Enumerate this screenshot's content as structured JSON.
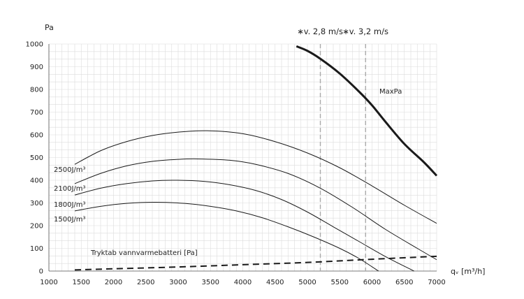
{
  "chart_data": {
    "type": "line",
    "xlabel": "qᵥ [m³/h]",
    "ylabel": "Pa",
    "xlim": [
      1000,
      7000
    ],
    "ylim": [
      0,
      1000
    ],
    "x_ticks": [
      1000,
      1500,
      2000,
      2500,
      3000,
      3500,
      4000,
      4500,
      5000,
      5500,
      6000,
      6500,
      7000
    ],
    "y_ticks": [
      0,
      100,
      200,
      300,
      400,
      500,
      600,
      700,
      800,
      900,
      1000
    ],
    "grid": true,
    "series": [
      {
        "name": "MaxPa",
        "style": "thick",
        "points": [
          [
            4830,
            990
          ],
          [
            5000,
            970
          ],
          [
            5200,
            935
          ],
          [
            5500,
            870
          ],
          [
            5800,
            790
          ],
          [
            6000,
            730
          ],
          [
            6200,
            660
          ],
          [
            6500,
            560
          ],
          [
            6800,
            480
          ],
          [
            7000,
            420
          ]
        ]
      },
      {
        "name": "2500J/m³",
        "style": "thin",
        "points": [
          [
            1400,
            470
          ],
          [
            1800,
            530
          ],
          [
            2200,
            570
          ],
          [
            2600,
            597
          ],
          [
            3000,
            612
          ],
          [
            3450,
            618
          ],
          [
            4000,
            605
          ],
          [
            4500,
            570
          ],
          [
            5000,
            520
          ],
          [
            5500,
            455
          ],
          [
            6000,
            375
          ],
          [
            6500,
            290
          ],
          [
            7000,
            210
          ]
        ]
      },
      {
        "name": "2100J/m³",
        "style": "thin",
        "points": [
          [
            1400,
            385
          ],
          [
            1800,
            430
          ],
          [
            2200,
            463
          ],
          [
            2600,
            483
          ],
          [
            3000,
            492
          ],
          [
            3300,
            494
          ],
          [
            3800,
            488
          ],
          [
            4200,
            470
          ],
          [
            4700,
            430
          ],
          [
            5200,
            365
          ],
          [
            5700,
            280
          ],
          [
            6200,
            185
          ],
          [
            6700,
            100
          ],
          [
            7000,
            50
          ]
        ]
      },
      {
        "name": "1800J/m³",
        "style": "thin",
        "points": [
          [
            1400,
            335
          ],
          [
            1800,
            365
          ],
          [
            2200,
            385
          ],
          [
            2600,
            397
          ],
          [
            2950,
            400
          ],
          [
            3400,
            395
          ],
          [
            3800,
            380
          ],
          [
            4200,
            355
          ],
          [
            4600,
            315
          ],
          [
            5000,
            260
          ],
          [
            5400,
            195
          ],
          [
            5800,
            130
          ],
          [
            6200,
            65
          ],
          [
            6650,
            0
          ]
        ]
      },
      {
        "name": "1500J/m³",
        "style": "thin",
        "points": [
          [
            1400,
            265
          ],
          [
            1800,
            285
          ],
          [
            2200,
            298
          ],
          [
            2650,
            303
          ],
          [
            3100,
            298
          ],
          [
            3500,
            285
          ],
          [
            3900,
            265
          ],
          [
            4300,
            235
          ],
          [
            4700,
            195
          ],
          [
            5100,
            150
          ],
          [
            5500,
            100
          ],
          [
            5800,
            55
          ],
          [
            6100,
            0
          ]
        ]
      },
      {
        "name": "Tryktab vannvarmebatteri [Pa]",
        "style": "dashed",
        "points": [
          [
            1400,
            5
          ],
          [
            2000,
            10
          ],
          [
            3000,
            18
          ],
          [
            4000,
            28
          ],
          [
            5000,
            38
          ],
          [
            6000,
            52
          ],
          [
            7000,
            65
          ]
        ]
      }
    ],
    "annotations": [
      {
        "text": "∗v. 2,8 m/s",
        "x": 5200,
        "kind": "vertical-dashed"
      },
      {
        "text": "∗v. 3,2 m/s",
        "x": 5900,
        "kind": "vertical-dashed"
      }
    ]
  },
  "colors": {
    "grid": "#dcdcdc",
    "curve": "#1a1a1a",
    "marker_line": "#a9a9a9"
  }
}
